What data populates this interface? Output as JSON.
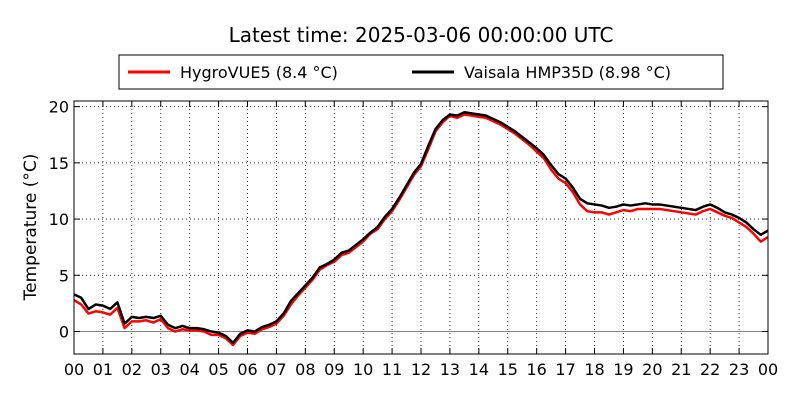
{
  "chart_data": {
    "type": "line",
    "title": "Latest time: 2025-03-06 00:00:00 UTC",
    "xlabel": "",
    "ylabel": "Temperature (°C)",
    "xlim": [
      0,
      24
    ],
    "ylim": [
      -2,
      20.5
    ],
    "x_ticks": [
      0,
      1,
      2,
      3,
      4,
      5,
      6,
      7,
      8,
      9,
      10,
      11,
      12,
      13,
      14,
      15,
      16,
      17,
      18,
      19,
      20,
      21,
      22,
      23,
      24
    ],
    "x_tick_labels": [
      "00",
      "01",
      "02",
      "03",
      "04",
      "05",
      "06",
      "07",
      "08",
      "09",
      "10",
      "11",
      "12",
      "13",
      "14",
      "15",
      "16",
      "17",
      "18",
      "19",
      "20",
      "21",
      "22",
      "23",
      "00"
    ],
    "y_ticks": [
      0,
      5,
      10,
      15,
      20
    ],
    "y_tick_labels": [
      "0",
      "5",
      "10",
      "15",
      "20"
    ],
    "grid": true,
    "zero_line": true,
    "legend_position": "top",
    "x": [
      0,
      0.25,
      0.5,
      0.75,
      1,
      1.25,
      1.5,
      1.75,
      2,
      2.25,
      2.5,
      2.75,
      3,
      3.25,
      3.5,
      3.75,
      4,
      4.25,
      4.5,
      4.75,
      5,
      5.25,
      5.5,
      5.75,
      6,
      6.25,
      6.5,
      6.75,
      7,
      7.25,
      7.5,
      7.75,
      8,
      8.25,
      8.5,
      8.75,
      9,
      9.25,
      9.5,
      9.75,
      10,
      10.25,
      10.5,
      10.75,
      11,
      11.25,
      11.5,
      11.75,
      12,
      12.25,
      12.5,
      12.75,
      13,
      13.25,
      13.5,
      13.75,
      14,
      14.25,
      14.5,
      14.75,
      15,
      15.25,
      15.5,
      15.75,
      16,
      16.25,
      16.5,
      16.75,
      17,
      17.25,
      17.5,
      17.75,
      18,
      18.25,
      18.5,
      18.75,
      19,
      19.25,
      19.5,
      19.75,
      20,
      20.25,
      20.5,
      20.75,
      21,
      21.25,
      21.5,
      21.75,
      22,
      22.25,
      22.5,
      22.75,
      23,
      23.25,
      23.5,
      23.75,
      24
    ],
    "series": [
      {
        "name": "HygroVUE5 (8.4 °C)",
        "color": "#ff0000",
        "values": [
          2.8,
          2.4,
          1.6,
          1.8,
          1.7,
          1.5,
          2.1,
          0.3,
          0.9,
          0.9,
          1.0,
          0.8,
          1.1,
          0.3,
          0.0,
          0.2,
          0.1,
          0.1,
          0.0,
          -0.3,
          -0.3,
          -0.6,
          -1.2,
          -0.4,
          -0.1,
          -0.2,
          0.2,
          0.4,
          0.7,
          1.4,
          2.4,
          3.2,
          3.9,
          4.6,
          5.5,
          5.9,
          6.2,
          6.8,
          7.0,
          7.5,
          8.0,
          8.7,
          9.1,
          10.0,
          10.7,
          11.7,
          12.8,
          13.9,
          14.7,
          16.2,
          17.8,
          18.6,
          19.2,
          19.0,
          19.3,
          19.2,
          19.1,
          19.0,
          18.7,
          18.4,
          18.0,
          17.6,
          17.1,
          16.6,
          16.0,
          15.4,
          14.4,
          13.6,
          13.2,
          12.4,
          11.3,
          10.7,
          10.6,
          10.6,
          10.4,
          10.6,
          10.8,
          10.7,
          10.9,
          10.9,
          10.9,
          10.9,
          10.8,
          10.7,
          10.6,
          10.5,
          10.4,
          10.7,
          10.9,
          10.6,
          10.3,
          10.1,
          9.7,
          9.3,
          8.7,
          8.0,
          8.4
        ]
      },
      {
        "name": "Vaisala HMP35D (8.98 °C)",
        "color": "#000000",
        "values": [
          3.3,
          3.0,
          2.0,
          2.4,
          2.3,
          2.0,
          2.6,
          0.7,
          1.3,
          1.2,
          1.3,
          1.2,
          1.4,
          0.6,
          0.3,
          0.5,
          0.3,
          0.3,
          0.2,
          0.0,
          -0.1,
          -0.4,
          -1.0,
          -0.2,
          0.1,
          0.0,
          0.4,
          0.6,
          0.9,
          1.6,
          2.7,
          3.4,
          4.1,
          4.8,
          5.7,
          6.0,
          6.4,
          7.0,
          7.2,
          7.7,
          8.2,
          8.8,
          9.3,
          10.2,
          10.9,
          11.9,
          13.0,
          14.1,
          14.9,
          16.5,
          18.0,
          18.8,
          19.3,
          19.2,
          19.5,
          19.4,
          19.3,
          19.2,
          18.9,
          18.6,
          18.2,
          17.8,
          17.3,
          16.8,
          16.3,
          15.7,
          14.8,
          14.0,
          13.6,
          12.8,
          11.8,
          11.4,
          11.3,
          11.2,
          11.0,
          11.1,
          11.3,
          11.2,
          11.3,
          11.4,
          11.3,
          11.3,
          11.2,
          11.1,
          11.0,
          10.9,
          10.8,
          11.1,
          11.3,
          11.0,
          10.6,
          10.4,
          10.1,
          9.7,
          9.1,
          8.6,
          8.98
        ]
      }
    ]
  }
}
